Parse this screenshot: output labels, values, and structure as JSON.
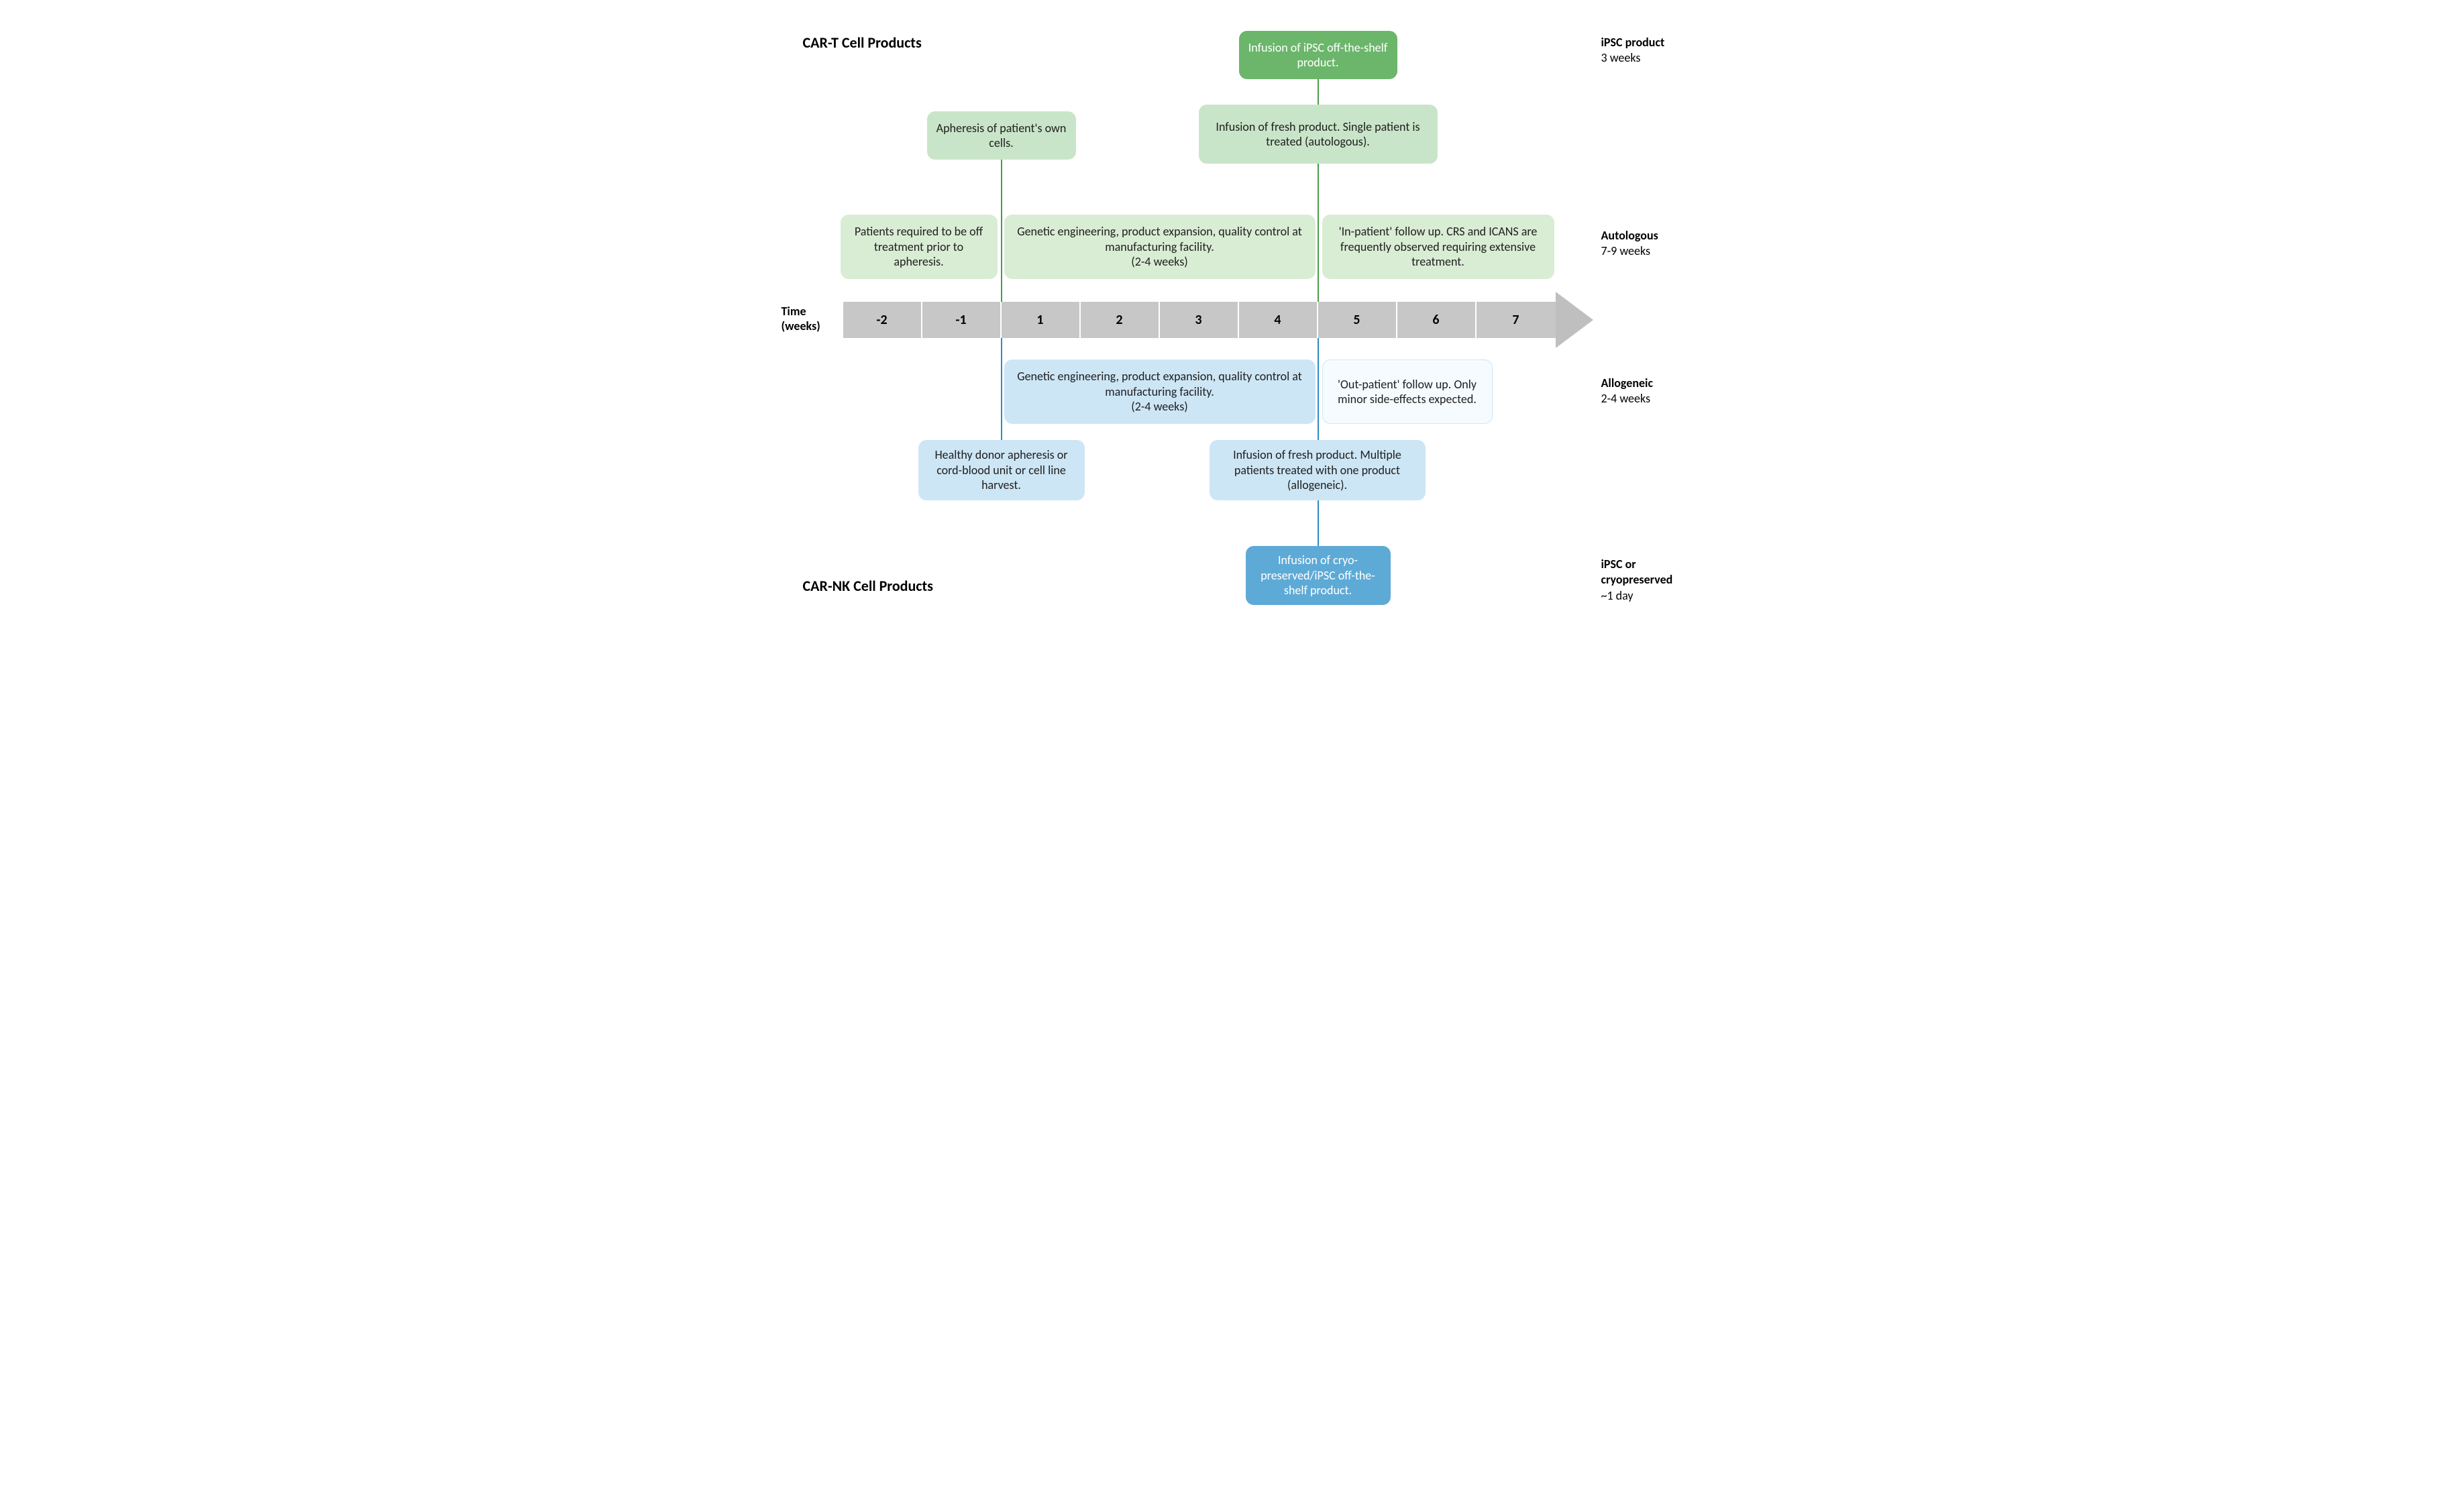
{
  "titles": {
    "top": "CAR-T Cell Products",
    "bottom": "CAR-NK Cell Products"
  },
  "sideLabels": {
    "ipscTop": {
      "bold": "iPSC product",
      "sub": "3 weeks"
    },
    "autologous": {
      "bold": "Autologous",
      "sub": "7-9 weeks"
    },
    "allogeneic": {
      "bold": "Allogeneic",
      "sub": "2-4 weeks"
    },
    "ipscBottom": {
      "bold": "iPSC  or cryopreserved",
      "sub": "~1 day"
    }
  },
  "axisLabel": "Time\n(weeks)",
  "timeline": {
    "cells": [
      "-2",
      "-1",
      "1",
      "2",
      "3",
      "4",
      "5",
      "6",
      "7"
    ],
    "cellWidth": 118,
    "barLeft": 110,
    "barTop": 410,
    "barHeight": 54,
    "bg": "#c7c7c7",
    "arrowColor": "#bfbfbf"
  },
  "colors": {
    "greenDark": "#6bb66b",
    "greenMid": "#c9e5c9",
    "greenLight": "#d9ecd4",
    "blueMid": "#cde6f5",
    "blueLight": "#f5fbff",
    "blueLightBorder": "#cfe7f5",
    "blueDark": "#5eaad6",
    "lineGreen": "#4b9b4b",
    "lineBlue": "#2d8bc4",
    "textDark": "#202020",
    "white": "#ffffff"
  },
  "boxes": {
    "g_ipsc": {
      "text": "Infusion of iPSC off-the-shelf product."
    },
    "g_aph": {
      "text": "Apheresis of patient's own cells."
    },
    "g_inf": {
      "text": "Infusion of fresh product. Single patient is treated (autologous)."
    },
    "g_off": {
      "text": "Patients required to be off treatment prior to apheresis."
    },
    "g_manu": {
      "text": "Genetic engineering, product expansion, quality control at manufacturing facility.\n(2-4 weeks)"
    },
    "g_follow": {
      "text": "'In-patient' follow up. CRS and ICANS are frequently observed requiring extensive treatment."
    },
    "b_manu": {
      "text": "Genetic engineering, product expansion, quality control at manufacturing facility.\n(2-4 weeks)"
    },
    "b_follow": {
      "text": "'Out-patient' follow up. Only minor side-effects expected."
    },
    "b_donor": {
      "text": "Healthy donor apheresis or cord-blood unit or cell line harvest."
    },
    "b_inf": {
      "text": "Infusion of fresh product. Multiple patients treated with one product (allogeneic)."
    },
    "b_ipsc": {
      "text": "Infusion of cryo-preserved/iPSC off-the-shelf product."
    }
  }
}
